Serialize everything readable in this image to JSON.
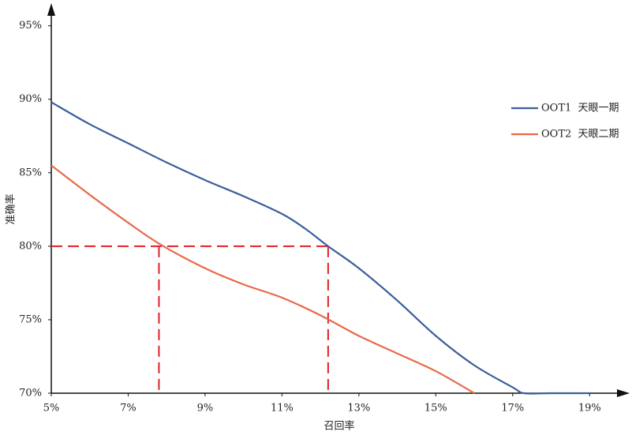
{
  "chart_data": {
    "type": "line",
    "x_label": "召回率",
    "y_label": "准确率",
    "xlim": [
      5,
      20
    ],
    "ylim": [
      70,
      96
    ],
    "xticks": [
      {
        "value": 5,
        "label": "5%"
      },
      {
        "value": 7,
        "label": "7%"
      },
      {
        "value": 9,
        "label": "9%"
      },
      {
        "value": 11,
        "label": "11%"
      },
      {
        "value": 13,
        "label": "13%"
      },
      {
        "value": 15,
        "label": "15%"
      },
      {
        "value": 17,
        "label": "17%"
      },
      {
        "value": 19,
        "label": "19%"
      }
    ],
    "yticks": [
      {
        "value": 70,
        "label": "70%"
      },
      {
        "value": 75,
        "label": "75%"
      },
      {
        "value": 80,
        "label": "80%"
      },
      {
        "value": 85,
        "label": "85%"
      },
      {
        "value": 90,
        "label": "90%"
      },
      {
        "value": 95,
        "label": "95%"
      }
    ],
    "legend": "right",
    "series": [
      {
        "name": "OOT1  天眼一期",
        "color": "#3a5f9c",
        "x": [
          5,
          6,
          7,
          8,
          9,
          10,
          11,
          11.6,
          12.2,
          13,
          14,
          15,
          16,
          17,
          17.3,
          18,
          19
        ],
        "values": [
          89.8,
          88.3,
          87.0,
          85.7,
          84.5,
          83.4,
          82.2,
          81.2,
          80.0,
          78.5,
          76.3,
          73.9,
          71.9,
          70.4,
          70,
          70,
          70
        ]
      },
      {
        "name": "OOT2  天眼二期",
        "color": "#e8694a",
        "x": [
          5,
          6,
          7,
          7.85,
          9,
          10,
          11,
          12,
          13,
          14,
          15,
          16
        ],
        "values": [
          85.5,
          83.5,
          81.6,
          80.1,
          78.5,
          77.4,
          76.5,
          75.3,
          73.9,
          72.7,
          71.5,
          70
        ]
      }
    ],
    "guides": {
      "y": 80,
      "x": [
        7.8,
        12.2
      ],
      "color": "#e0202a"
    }
  }
}
